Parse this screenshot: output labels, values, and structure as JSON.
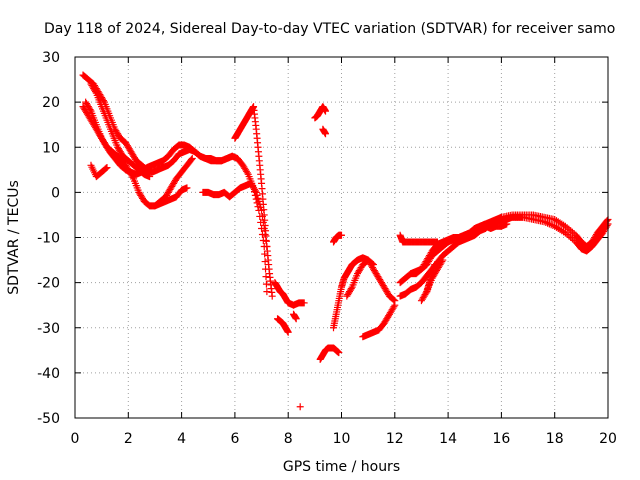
{
  "chart_data": {
    "type": "scatter",
    "title": "Day 118 of 2024, Sidereal Day-to-day VTEC variation (SDTVAR) for receiver samo",
    "xlabel": "GPS time / hours",
    "ylabel": "SDTVAR / TECUs",
    "xlim": [
      0,
      20
    ],
    "ylim": [
      -50,
      30
    ],
    "xticks": [
      0,
      2,
      4,
      6,
      8,
      10,
      12,
      14,
      16,
      18,
      20
    ],
    "yticks": [
      -50,
      -40,
      -30,
      -20,
      -10,
      0,
      10,
      20,
      30
    ],
    "grid": true,
    "marker": "+",
    "color": "#ff0000",
    "series": [
      {
        "name": "s1",
        "x": [
          0.3,
          0.5,
          0.7,
          0.9,
          1.1,
          1.3,
          1.5,
          1.7,
          1.9,
          2.1,
          2.3,
          2.5,
          2.7,
          2.9,
          3.1,
          3.3,
          3.5,
          3.7,
          3.9,
          4.1,
          4.3,
          4.5,
          4.7,
          4.9,
          5.1,
          5.3,
          5.5,
          5.7,
          5.9,
          6.1,
          6.3,
          6.5,
          6.7,
          6.9,
          7.1,
          7.2
        ],
        "y": [
          19,
          17,
          15,
          13,
          11,
          9,
          7.5,
          6,
          5,
          4.5,
          4,
          4.5,
          5.5,
          6,
          6.5,
          7,
          8,
          9.5,
          10.5,
          10.5,
          10,
          9,
          8,
          7.5,
          7,
          7,
          7,
          7.5,
          8,
          7.5,
          6,
          4,
          1,
          -4,
          -12,
          -22
        ]
      },
      {
        "name": "s2",
        "x": [
          0.3,
          0.5,
          0.7,
          0.9,
          1.1,
          1.3,
          1.5,
          1.7,
          1.9,
          2.1,
          2.3,
          2.5,
          2.7,
          2.9,
          3.1,
          3.3,
          3.5,
          3.7,
          3.9,
          4.1,
          4.3,
          4.5,
          4.7,
          4.9,
          5.1,
          5.3,
          5.5,
          5.7,
          5.9
        ],
        "y": [
          26,
          25,
          24,
          22,
          20,
          17,
          14,
          12,
          11,
          9,
          7,
          6,
          5,
          4.5,
          5,
          5.5,
          6,
          7,
          8.5,
          9,
          9.5,
          9,
          8,
          7.5,
          7.5,
          7,
          7,
          7.5,
          8
        ]
      },
      {
        "name": "s3",
        "x": [
          0.4,
          0.6,
          0.8,
          1.0,
          1.2,
          1.4,
          1.6,
          1.8,
          2.0,
          2.2,
          2.4,
          2.6,
          2.8,
          3.0,
          3.2,
          3.4,
          3.6,
          3.8,
          4.0,
          4.2
        ],
        "y": [
          20,
          18,
          15,
          12,
          10,
          9,
          8,
          7,
          5,
          3,
          0,
          -2,
          -3,
          -3,
          -2.5,
          -2,
          -1.5,
          -1,
          0.5,
          1
        ]
      },
      {
        "name": "s4",
        "x": [
          0.6,
          0.8,
          1.0,
          1.2,
          1.4,
          1.6,
          1.8,
          2.0,
          2.2,
          2.4,
          2.6,
          2.8
        ],
        "y": [
          24,
          22,
          19,
          16,
          13,
          10,
          8,
          7,
          6,
          5,
          4,
          3.5
        ]
      },
      {
        "name": "s5",
        "x": [
          0.6,
          0.8,
          1.0,
          1.2
        ],
        "y": [
          6,
          3.5,
          4.5,
          5.5
        ]
      },
      {
        "name": "s6",
        "x": [
          3.0,
          3.2,
          3.4,
          3.6,
          3.8,
          4.0,
          4.2,
          4.4
        ],
        "y": [
          -3,
          -2,
          -1,
          1,
          3,
          4.5,
          6,
          7.5
        ]
      },
      {
        "name": "s7",
        "x": [
          4.8,
          5.0,
          5.2,
          5.4,
          5.6,
          5.8,
          6.0,
          6.2,
          6.4,
          6.6,
          6.8,
          7.0,
          7.2
        ],
        "y": [
          0,
          0,
          -0.5,
          -0.5,
          0,
          -1,
          0,
          1,
          1.5,
          2,
          0,
          -4,
          -12
        ]
      },
      {
        "name": "s8",
        "x": [
          6.0,
          6.1,
          6.2,
          6.3,
          6.4,
          6.5,
          6.6,
          6.7,
          6.8,
          6.9,
          7.0,
          7.1,
          7.2,
          7.3,
          7.4
        ],
        "y": [
          12,
          13,
          14,
          15,
          16,
          17,
          18,
          19,
          14,
          8,
          2,
          -5,
          -12,
          -18,
          -23
        ]
      },
      {
        "name": "s9",
        "x": [
          7.5,
          7.6,
          7.7,
          7.8,
          7.9,
          8.0
        ],
        "y": [
          -20,
          -21,
          -22,
          -22.5,
          -23.5,
          -24.5
        ]
      },
      {
        "name": "s10",
        "x": [
          8.0,
          8.2,
          8.4,
          8.6
        ],
        "y": [
          -24.5,
          -25,
          -24.5,
          -24.5
        ]
      },
      {
        "name": "s11",
        "x": [
          7.6,
          7.7,
          7.8,
          7.9,
          8.0
        ],
        "y": [
          -28,
          -28.5,
          -29,
          -30,
          -31
        ]
      },
      {
        "name": "s12",
        "x": [
          8.2,
          8.3
        ],
        "y": [
          -27,
          -28
        ]
      },
      {
        "name": "s13",
        "x": [
          8.45
        ],
        "y": [
          -47.5
        ]
      },
      {
        "name": "s14",
        "x": [
          9.0,
          9.1,
          9.2,
          9.3,
          9.4
        ],
        "y": [
          16.5,
          17,
          18,
          19,
          18
        ]
      },
      {
        "name": "s15",
        "x": [
          9.3,
          9.4
        ],
        "y": [
          14,
          13
        ]
      },
      {
        "name": "s16",
        "x": [
          9.2,
          9.3,
          9.4,
          9.5,
          9.6,
          9.7,
          9.8,
          9.9
        ],
        "y": [
          -37,
          -36,
          -35,
          -34.5,
          -34.5,
          -34.5,
          -35,
          -35.5
        ]
      },
      {
        "name": "s17",
        "x": [
          9.7,
          9.8,
          9.9,
          10.0,
          10.1,
          10.2,
          10.3,
          10.4,
          10.5,
          10.6,
          10.8,
          11.0,
          11.2,
          11.4,
          11.6,
          11.8,
          12.0
        ],
        "y": [
          -30,
          -27,
          -24,
          -21,
          -19,
          -18,
          -17,
          -16,
          -15.5,
          -15,
          -14.5,
          -15,
          -17,
          -19,
          -21,
          -23,
          -24
        ]
      },
      {
        "name": "s18",
        "x": [
          9.7,
          9.8,
          9.9,
          10.0
        ],
        "y": [
          -11,
          -10,
          -9.5,
          -9.5
        ]
      },
      {
        "name": "s19",
        "x": [
          10.2,
          10.4,
          10.6,
          10.8,
          11.0,
          11.2
        ],
        "y": [
          -23,
          -21,
          -18,
          -16,
          -15,
          -16
        ]
      },
      {
        "name": "s20",
        "x": [
          10.8,
          11.0,
          11.2,
          11.4,
          11.6,
          11.8,
          12.0
        ],
        "y": [
          -32,
          -31.5,
          -31,
          -30.5,
          -29,
          -27,
          -25
        ]
      },
      {
        "name": "s21",
        "x": [
          12.2,
          12.3,
          12.4,
          12.6,
          12.8,
          13.0,
          13.2,
          13.4,
          13.6
        ],
        "y": [
          -9.5,
          -11,
          -11,
          -11,
          -11,
          -11,
          -11,
          -11,
          -11
        ]
      },
      {
        "name": "s22",
        "x": [
          12.2,
          12.4,
          12.6,
          12.8,
          13.0,
          13.2,
          13.4,
          13.6,
          13.8,
          14.0,
          14.2,
          14.4,
          14.6,
          14.8,
          15.0,
          15.2,
          15.4,
          15.6,
          15.8,
          16.0,
          16.4,
          16.8,
          17.2,
          17.6,
          18.0,
          18.4,
          18.8,
          19.0,
          19.2,
          19.4,
          19.6,
          19.8,
          20.0
        ],
        "y": [
          -20,
          -19,
          -18,
          -18,
          -17,
          -16,
          -14,
          -13,
          -12,
          -11,
          -10.5,
          -10,
          -9.5,
          -9,
          -8,
          -7.5,
          -7,
          -6.5,
          -6,
          -5.5,
          -5,
          -5,
          -5,
          -5.5,
          -6,
          -7.5,
          -9.5,
          -11,
          -12,
          -11,
          -9,
          -7.5,
          -6
        ]
      },
      {
        "name": "s23",
        "x": [
          12.2,
          12.4,
          12.6,
          12.8,
          13.0,
          13.2,
          13.4,
          13.6,
          13.8,
          14.0,
          14.2,
          14.4,
          14.6,
          14.8,
          15.0,
          15.2,
          15.4,
          15.6,
          15.8,
          16.0,
          16.4,
          16.8,
          17.2,
          17.6,
          18.0,
          18.4,
          18.8,
          19.0,
          19.2,
          19.4,
          19.6,
          19.8,
          20.0
        ],
        "y": [
          -23,
          -22.5,
          -21.5,
          -21,
          -20,
          -18.5,
          -17,
          -15.5,
          -14,
          -13,
          -12,
          -11,
          -10.5,
          -10,
          -9.5,
          -8.5,
          -8,
          -7,
          -6.5,
          -6,
          -5.5,
          -5.5,
          -6,
          -6.5,
          -7.5,
          -9,
          -11,
          -12.5,
          -13,
          -12,
          -10.5,
          -9,
          -7
        ]
      },
      {
        "name": "s24",
        "x": [
          12.6,
          12.8,
          13.0,
          13.2,
          13.4,
          13.6,
          13.8,
          14.0,
          14.2,
          14.4,
          14.6,
          14.8,
          15.0,
          15.2,
          15.4,
          15.6
        ],
        "y": [
          -18,
          -17.5,
          -17,
          -15,
          -13,
          -11.5,
          -11,
          -10.5,
          -10,
          -10,
          -9.5,
          -9,
          -8,
          -7.5,
          -7,
          -7
        ]
      },
      {
        "name": "s25",
        "x": [
          13.0,
          13.2,
          13.4,
          13.6,
          13.8
        ],
        "y": [
          -24,
          -22,
          -19,
          -17,
          -15
        ]
      },
      {
        "name": "s26",
        "x": [
          13.2,
          13.3,
          13.4,
          13.5
        ],
        "y": [
          -22,
          -20,
          -18,
          -16
        ]
      },
      {
        "name": "s27",
        "x": [
          15.0,
          15.2,
          15.4,
          15.6,
          15.8,
          16.0,
          16.2
        ],
        "y": [
          -8.5,
          -8,
          -7.5,
          -8,
          -7.5,
          -7.5,
          -7
        ]
      },
      {
        "name": "s28",
        "x": [
          16.0,
          16.2,
          16.4,
          16.6,
          16.8
        ],
        "y": [
          -6,
          -6,
          -5.5,
          -5.5,
          -5.5
        ]
      }
    ]
  }
}
